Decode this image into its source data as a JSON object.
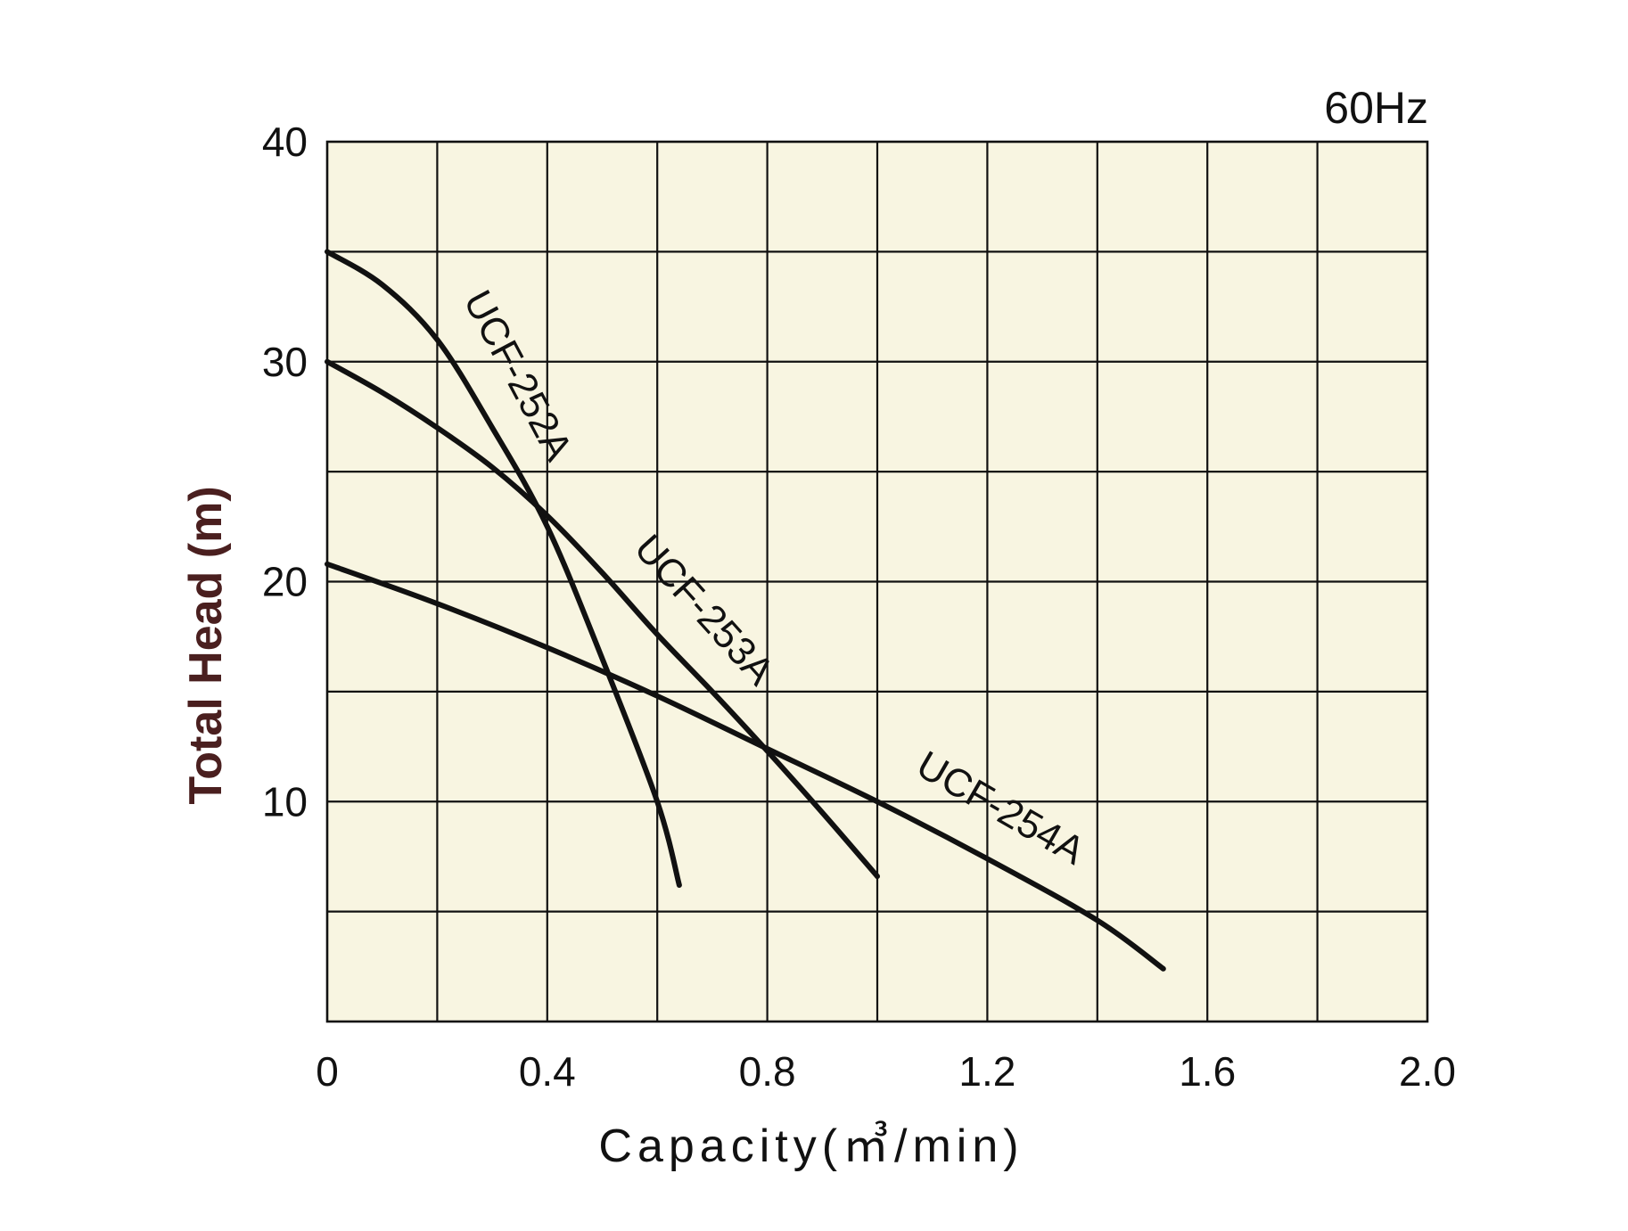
{
  "chart_data": {
    "type": "line",
    "title": "",
    "annotation": "60Hz",
    "xlabel": "Capacity(㎥/min)",
    "ylabel": "Total Head (m)",
    "xlim": [
      0,
      2.0
    ],
    "ylim": [
      0,
      40
    ],
    "x_ticks": [
      "0",
      "0.4",
      "0.8",
      "1.2",
      "1.6",
      "2.0"
    ],
    "y_ticks": [
      "10",
      "20",
      "30",
      "40"
    ],
    "grid": true,
    "x_grid_step": 0.2,
    "y_grid_step": 5,
    "plot_background": "#f8f5e1",
    "line_color": "#111111",
    "series": [
      {
        "name": "UCF-252A",
        "x": [
          0,
          0.1,
          0.2,
          0.3,
          0.4,
          0.5,
          0.6,
          0.64
        ],
        "y": [
          35,
          33.5,
          31,
          27,
          22.5,
          16.5,
          10,
          6.2
        ]
      },
      {
        "name": "UCF-253A",
        "x": [
          0,
          0.1,
          0.2,
          0.3,
          0.4,
          0.5,
          0.6,
          0.7,
          0.8,
          0.9,
          1.0
        ],
        "y": [
          30,
          28.6,
          27,
          25.2,
          23,
          20.4,
          17.6,
          15,
          12.3,
          9.5,
          6.6
        ]
      },
      {
        "name": "UCF-254A",
        "x": [
          0,
          0.2,
          0.4,
          0.6,
          0.8,
          1.0,
          1.2,
          1.4,
          1.52
        ],
        "y": [
          20.8,
          19,
          17,
          14.8,
          12.4,
          10,
          7.4,
          4.6,
          2.4
        ]
      }
    ]
  }
}
